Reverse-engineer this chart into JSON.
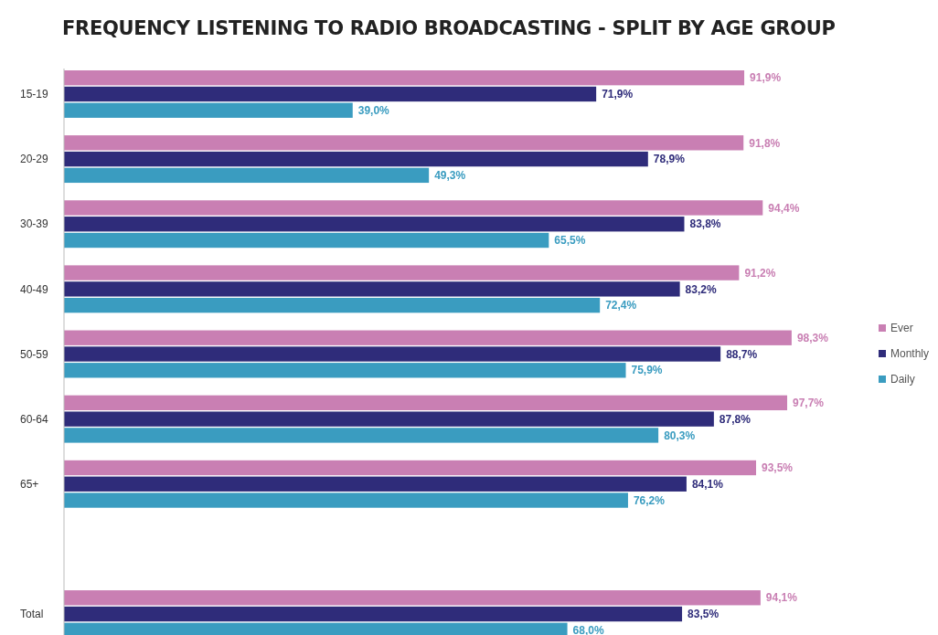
{
  "chart_data": {
    "type": "bar",
    "orientation": "horizontal",
    "title": "FREQUENCY LISTENING TO RADIO BROADCASTING - SPLIT BY AGE GROUP",
    "categories": [
      "15-19",
      "20-29",
      "30-39",
      "40-49",
      "50-59",
      "60-64",
      "65+",
      null,
      "Total"
    ],
    "series": [
      {
        "name": "Ever",
        "color": "#c97fb3",
        "values": [
          91.9,
          91.8,
          94.4,
          91.2,
          98.3,
          97.7,
          93.5,
          null,
          94.1
        ],
        "value_labels": [
          "91,9%",
          "91,8%",
          "94,4%",
          "91,2%",
          "98,3%",
          "97,7%",
          "93,5%",
          null,
          "94,1%"
        ]
      },
      {
        "name": "Monthly",
        "color": "#2f2c7a",
        "values": [
          71.9,
          78.9,
          83.8,
          83.2,
          88.7,
          87.8,
          84.1,
          null,
          83.5
        ],
        "value_labels": [
          "71,9%",
          "78,9%",
          "83,8%",
          "83,2%",
          "88,7%",
          "87,8%",
          "84,1%",
          null,
          "83,5%"
        ]
      },
      {
        "name": "Daily",
        "color": "#3a9cc0",
        "values": [
          39.0,
          49.3,
          65.5,
          72.4,
          75.9,
          80.3,
          76.2,
          null,
          68.0
        ],
        "value_labels": [
          "39,0%",
          "49,3%",
          "65,5%",
          "72,4%",
          "75,9%",
          "80,3%",
          "76,2%",
          null,
          "68,0%"
        ]
      }
    ],
    "legend": "right"
  }
}
